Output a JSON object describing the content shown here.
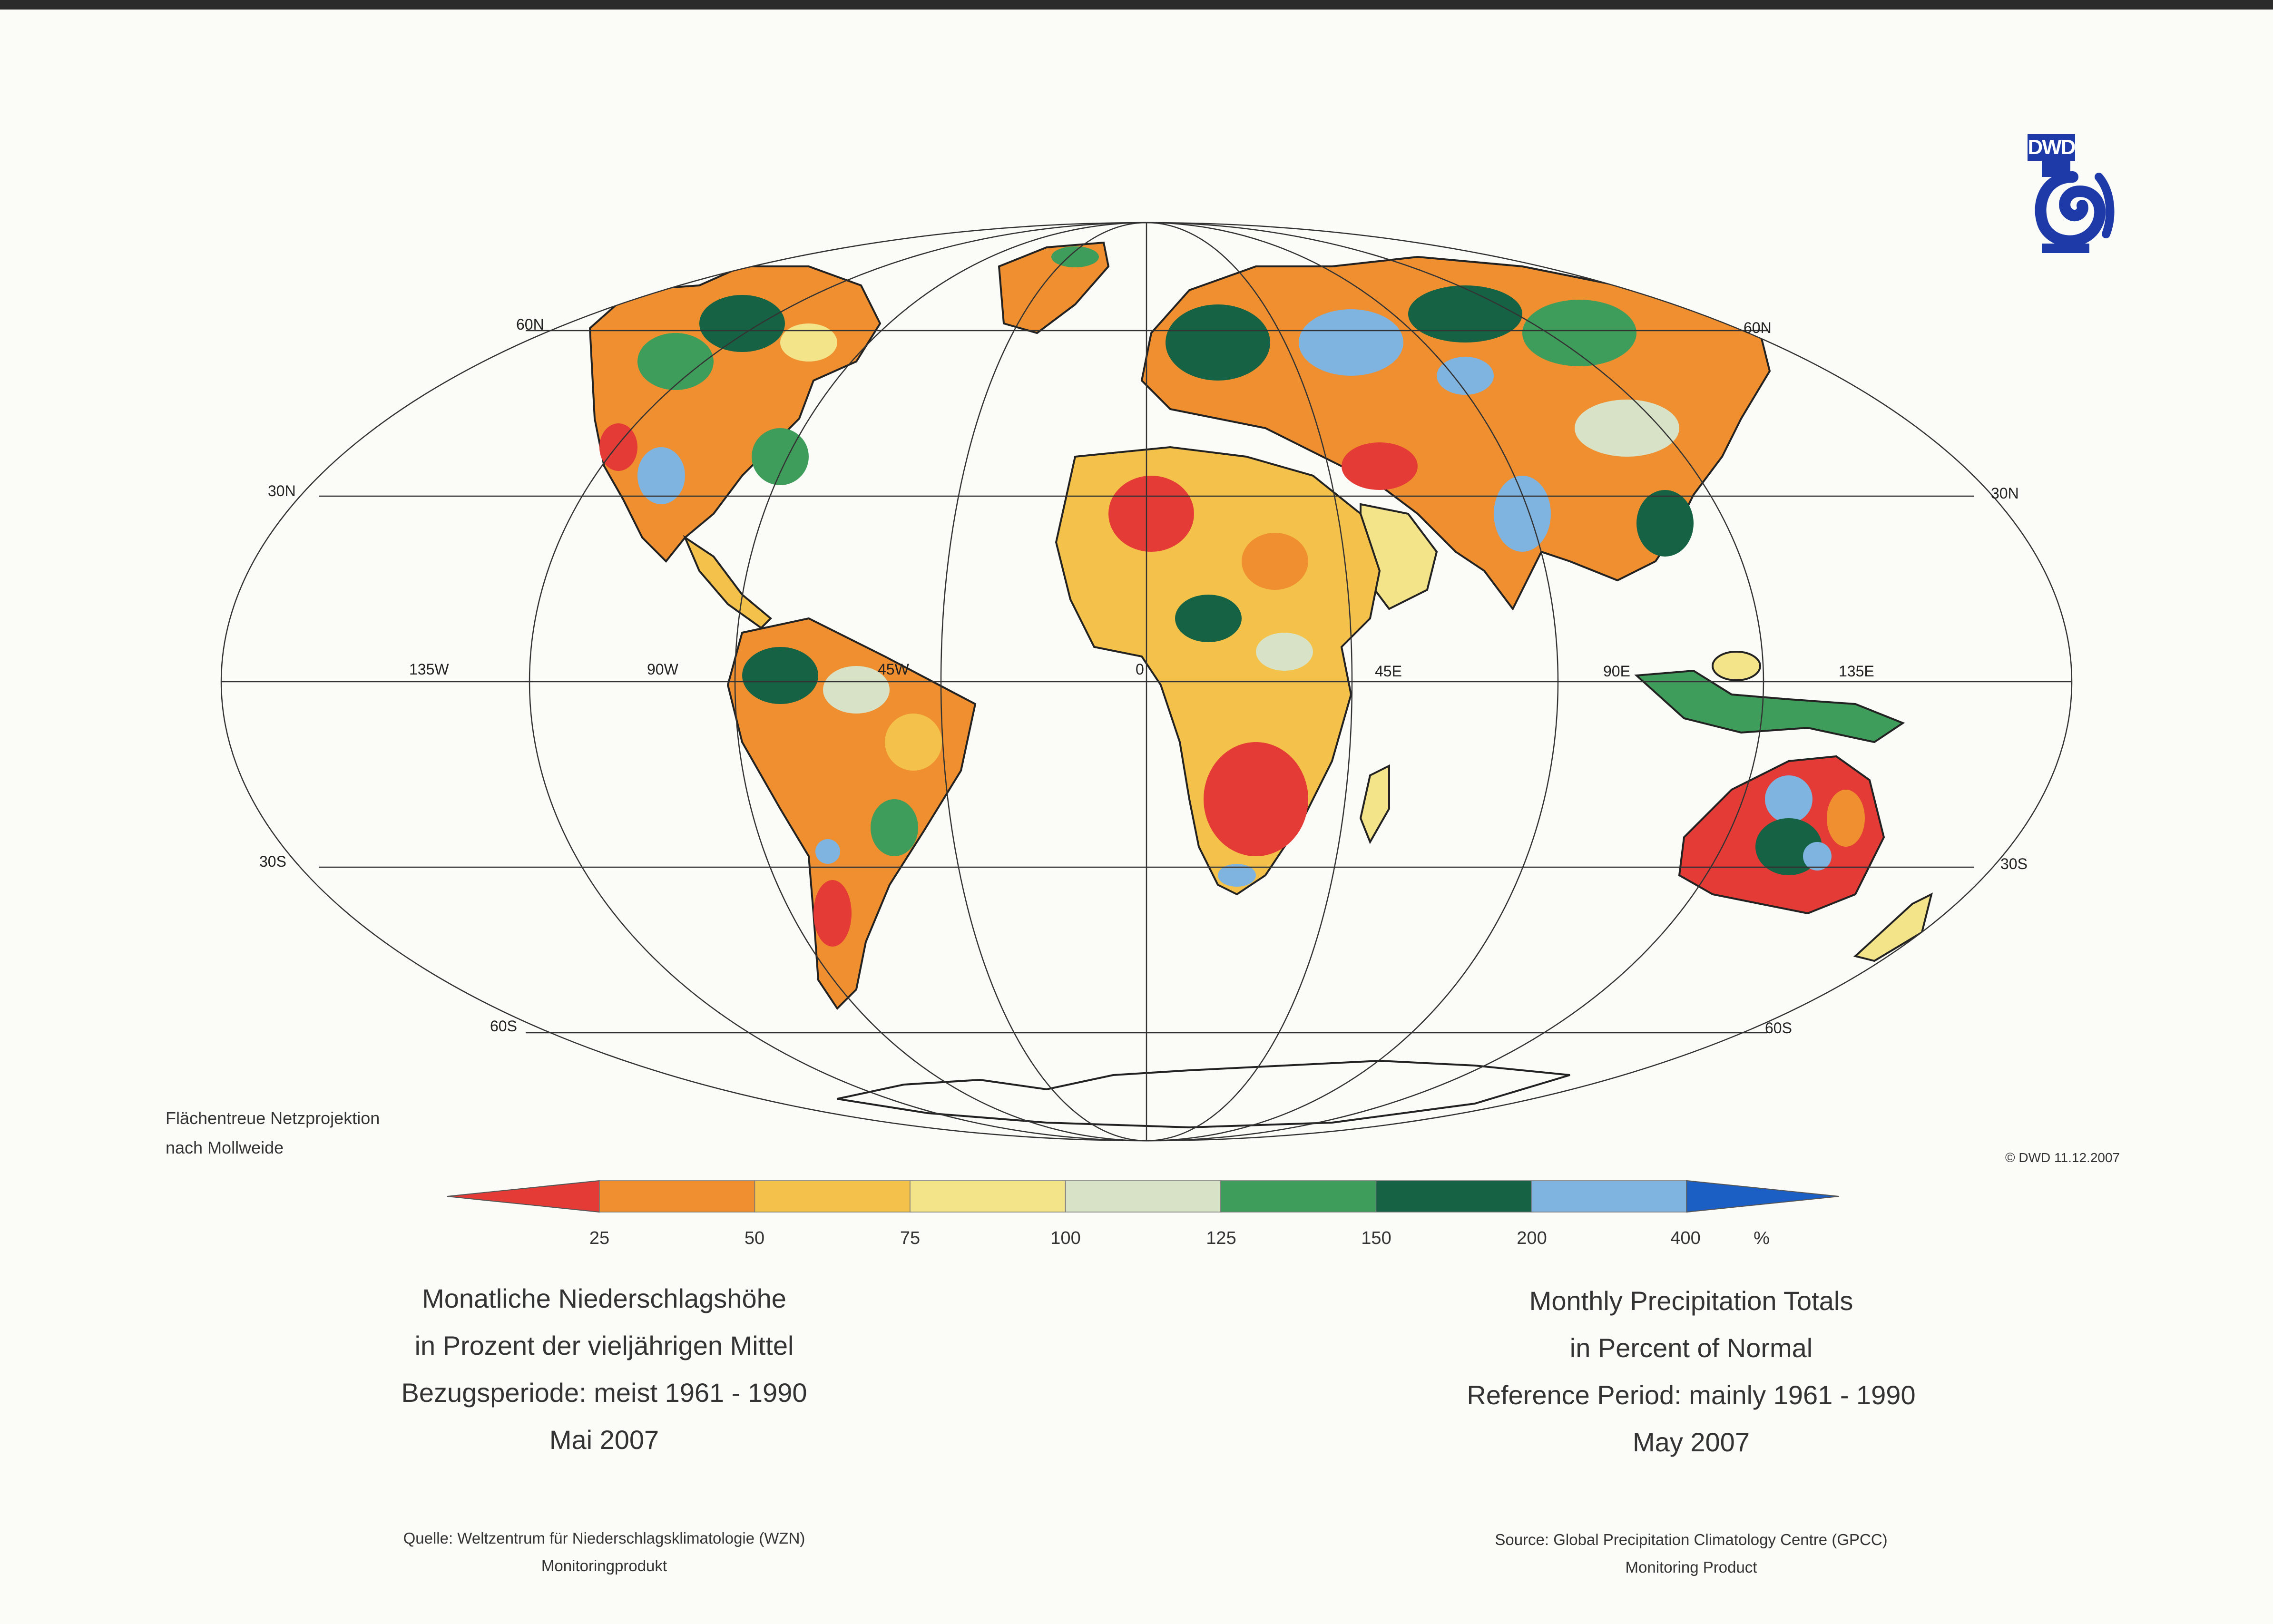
{
  "logo": {
    "text": "DWD"
  },
  "projection_note": {
    "line1": "Flächentreue Netzprojektion",
    "line2": "nach Mollweide"
  },
  "copyright": "© DWD 11.12.2007",
  "graticule": {
    "latitudes": [
      "60N",
      "30N",
      "30S",
      "60S"
    ],
    "longitudes": [
      "135W",
      "90W",
      "45W",
      "0",
      "45E",
      "90E",
      "135E"
    ]
  },
  "legend": {
    "ticks": [
      "25",
      "50",
      "75",
      "100",
      "125",
      "150",
      "200",
      "400"
    ],
    "unit": "%",
    "colors": [
      "#e43b36",
      "#ef8f2f",
      "#f4c24a",
      "#f3e389",
      "#d8e2c6",
      "#3f9d5b",
      "#156344",
      "#7fb3e0",
      "#1b5fc4"
    ]
  },
  "title_de": {
    "line1": "Monatliche Niederschlagshöhe",
    "line2": "in Prozent der vieljährigen Mittel",
    "line3": "Bezugsperiode: meist 1961 - 1990",
    "line4": "Mai 2007"
  },
  "title_en": {
    "line1": "Monthly Precipitation Totals",
    "line2": "in Percent of Normal",
    "line3": "Reference Period: mainly 1961 - 1990",
    "line4": "May 2007"
  },
  "source_de": {
    "line1": "Quelle: Weltzentrum für Niederschlagsklimatologie (WZN)",
    "line2": "Monitoringprodukt"
  },
  "source_en": {
    "line1": "Source: Global Precipitation Climatology Centre (GPCC)",
    "line2": "Monitoring Product"
  }
}
